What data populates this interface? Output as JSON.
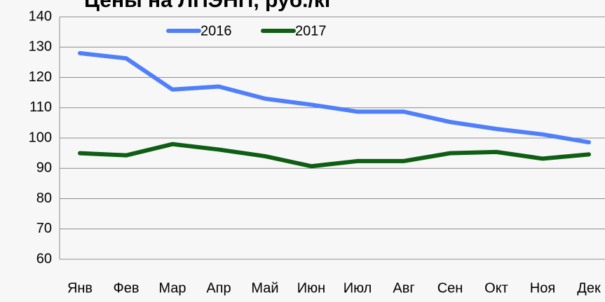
{
  "chart_data": {
    "type": "line",
    "title": "Цены на ЛПЭНП, руб./кг",
    "categories": [
      "Янв",
      "Фев",
      "Мар",
      "Апр",
      "Май",
      "Июн",
      "Июл",
      "Авг",
      "Сен",
      "Окт",
      "Ноя",
      "Дек"
    ],
    "series": [
      {
        "name": "2016",
        "color": "#4f7ffb",
        "values": [
          128,
          126.3,
          116,
          117,
          113,
          111,
          108.7,
          108.7,
          105.3,
          103,
          101.2,
          98.6
        ]
      },
      {
        "name": "2017",
        "color": "#0e5e14",
        "values": [
          95,
          94.3,
          98,
          96.2,
          94,
          90.7,
          92.4,
          92.4,
          95,
          95.4,
          93.2,
          94.6
        ]
      }
    ],
    "ylim": [
      60,
      140
    ],
    "yticks": [
      60,
      70,
      80,
      90,
      100,
      110,
      120,
      130,
      140
    ],
    "grid": true,
    "legend": "top"
  }
}
